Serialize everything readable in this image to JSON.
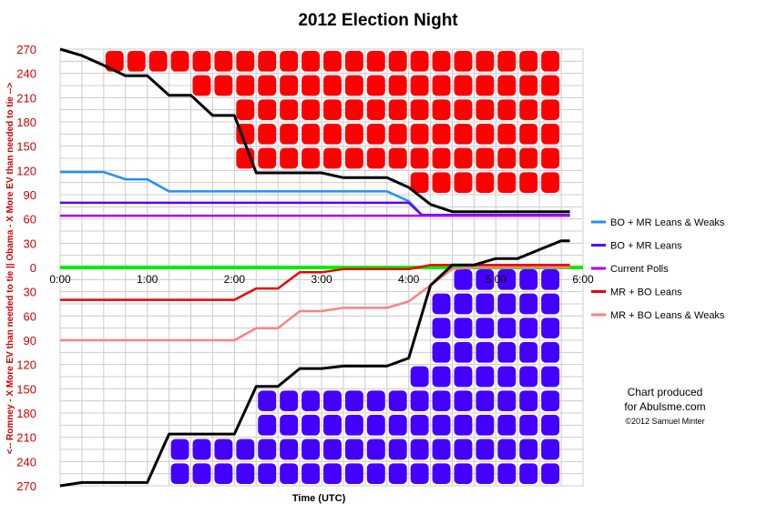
{
  "chart_data": {
    "type": "line",
    "title": "2012 Election Night",
    "xlabel": "Time (UTC)",
    "ylabel": "<-- Romney - X More EV than needed to tie ||  Obama - X More EV than needed to tie -->",
    "xlim": [
      0,
      6
    ],
    "ylim": [
      -270,
      270
    ],
    "x_ticks": [
      {
        "v": 0,
        "label": "0:00"
      },
      {
        "v": 1,
        "label": "1:00"
      },
      {
        "v": 2,
        "label": "2:00"
      },
      {
        "v": 3,
        "label": "3:00"
      },
      {
        "v": 4,
        "label": "4:00"
      },
      {
        "v": 5,
        "label": "5:00"
      },
      {
        "v": 6,
        "label": "6:00"
      }
    ],
    "y_ticks": [
      {
        "v": 270,
        "label": "270"
      },
      {
        "v": 240,
        "label": "240"
      },
      {
        "v": 210,
        "label": "210"
      },
      {
        "v": 180,
        "label": "180"
      },
      {
        "v": 150,
        "label": "150"
      },
      {
        "v": 120,
        "label": "120"
      },
      {
        "v": 90,
        "label": "90"
      },
      {
        "v": 60,
        "label": "60"
      },
      {
        "v": 30,
        "label": "30"
      },
      {
        "v": 0,
        "label": "0"
      },
      {
        "v": -30,
        "label": "30"
      },
      {
        "v": -60,
        "label": "60"
      },
      {
        "v": -90,
        "label": "90"
      },
      {
        "v": -120,
        "label": "120"
      },
      {
        "v": -150,
        "label": "150"
      },
      {
        "v": -180,
        "label": "180"
      },
      {
        "v": -210,
        "label": "210"
      },
      {
        "v": -240,
        "label": "240"
      },
      {
        "v": -270,
        "label": "270"
      }
    ],
    "grid": true,
    "legend_position": "right",
    "series": [
      {
        "name": "BO + MR Leans & Weaks",
        "color": "#1e90ff",
        "x": [
          0,
          0.25,
          0.5,
          0.75,
          1.0,
          1.25,
          1.5,
          1.75,
          2.0,
          2.25,
          2.5,
          2.75,
          3.0,
          3.25,
          3.5,
          3.75,
          4.0,
          4.15,
          4.25,
          5.85
        ],
        "y": [
          118,
          118,
          118,
          109,
          109,
          94,
          94,
          94,
          94,
          94,
          94,
          94,
          94,
          94,
          94,
          94,
          82,
          65,
          65,
          65
        ]
      },
      {
        "name": "BO + MR Leans",
        "color": "#5500ff",
        "x": [
          0,
          4.0,
          4.15,
          5.85
        ],
        "y": [
          80,
          80,
          65,
          65
        ]
      },
      {
        "name": "Current Polls",
        "color": "#aa00ee",
        "x": [
          0,
          5.85
        ],
        "y": [
          64,
          64
        ]
      },
      {
        "name": "MR + BO Leans",
        "color": "#ee0000",
        "x": [
          0,
          2.0,
          2.25,
          2.5,
          2.75,
          3.0,
          3.25,
          3.5,
          3.75,
          4.0,
          4.25,
          4.5,
          4.75,
          5.85
        ],
        "y": [
          -40,
          -40,
          -26,
          -26,
          -6,
          -6,
          -2,
          -2,
          -2,
          -2,
          3,
          3,
          3,
          3
        ]
      },
      {
        "name": "MR + BO Leans & Weaks",
        "color": "#ff8080",
        "x": [
          0,
          2.0,
          2.25,
          2.5,
          2.75,
          3.0,
          3.25,
          3.5,
          3.75,
          4.0,
          4.25,
          4.5,
          4.75,
          5.85
        ],
        "y": [
          -90,
          -90,
          -75,
          -75,
          -54,
          -54,
          -50,
          -50,
          -50,
          -42,
          -22,
          -2,
          0,
          0
        ]
      },
      {
        "name": "Current",
        "color": "#000000",
        "x": [
          0,
          0.25,
          0.5,
          0.75,
          1.0,
          1.25,
          1.5,
          1.75,
          2.0,
          2.25,
          2.5,
          2.75,
          3.0,
          3.25,
          3.5,
          3.75,
          4.0,
          4.25,
          4.5,
          4.75,
          5.0,
          5.25,
          5.5,
          5.75,
          5.85
        ],
        "y": [
          270,
          262,
          250,
          237,
          237,
          213,
          213,
          188,
          188,
          117,
          117,
          117,
          117,
          111,
          111,
          111,
          99,
          78,
          69,
          69,
          69,
          69,
          69,
          69,
          69
        ]
      },
      {
        "name": "Current (Obama)",
        "color": "#000000",
        "x": [
          0,
          0.25,
          0.5,
          0.75,
          1.0,
          1.25,
          1.5,
          1.75,
          2.0,
          2.25,
          2.5,
          2.75,
          3.0,
          3.25,
          3.5,
          3.75,
          4.0,
          4.25,
          4.5,
          4.75,
          5.0,
          5.25,
          5.5,
          5.75,
          5.85
        ],
        "y": [
          -270,
          -266,
          -266,
          -266,
          -266,
          -206,
          -206,
          -206,
          -206,
          -147,
          -147,
          -125,
          -125,
          -122,
          -122,
          -122,
          -112,
          -22,
          3,
          3,
          11,
          11,
          22,
          33,
          33
        ]
      }
    ],
    "romney_area_top": [
      270,
      270,
      270,
      270,
      270,
      270,
      270,
      270,
      270,
      270,
      270,
      270,
      270,
      270,
      270,
      270,
      270,
      270,
      270,
      270,
      270,
      270,
      270
    ],
    "colors": {
      "romney_fill": "#ff0000",
      "obama_fill": "#4400ff",
      "zero_line": "#00ee00",
      "tick_red": "#d10000"
    },
    "legend": [
      {
        "label": "BO + MR Leans & Weaks",
        "color": "#1e90ff"
      },
      {
        "label": "BO + MR Leans",
        "color": "#5500ff"
      },
      {
        "label": "Current Polls",
        "color": "#aa00ee"
      },
      {
        "label": "MR + BO Leans",
        "color": "#ee0000"
      },
      {
        "label": "MR + BO Leans & Weaks",
        "color": "#ff8080"
      }
    ],
    "credit": {
      "line1": "Chart produced",
      "line2": "for Abulsme.com",
      "line3": "©2012 Samuel Minter"
    }
  }
}
